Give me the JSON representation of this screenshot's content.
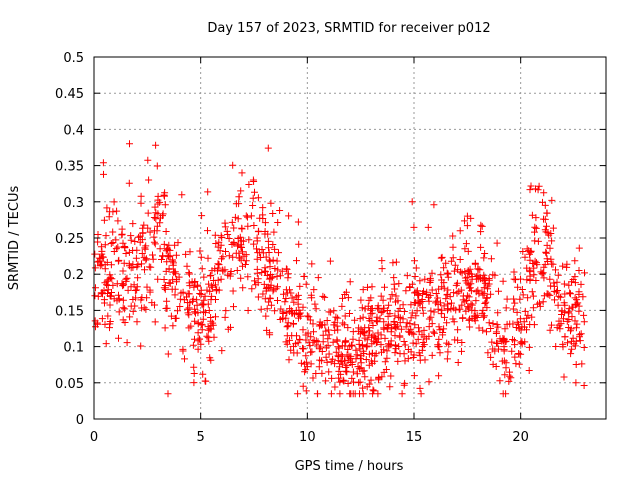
{
  "chart_data": {
    "type": "scatter",
    "title": "Day 157 of 2023, SRMTID for receiver p012",
    "xlabel": "GPS time / hours",
    "ylabel": "SRMTID / TECUs",
    "xlim": [
      0,
      24
    ],
    "ylim": [
      0,
      0.5
    ],
    "xticks": [
      0,
      5,
      10,
      15,
      20
    ],
    "xtick_labels": [
      "0",
      "5",
      "10",
      "15",
      "20"
    ],
    "yticks": [
      0,
      0.05,
      0.1,
      0.15,
      0.2,
      0.25,
      0.3,
      0.35,
      0.4,
      0.45,
      0.5
    ],
    "ytick_labels": [
      "0",
      "0.05",
      "0.1",
      "0.15",
      "0.2",
      "0.25",
      "0.3",
      "0.35",
      "0.4",
      "0.45",
      "0.5"
    ],
    "grid": true,
    "marker": "+",
    "color": "#ff0000",
    "x_data_range": [
      0,
      23
    ],
    "trend": {
      "x": [
        0,
        1,
        2,
        2.5,
        3,
        3.5,
        4,
        5,
        6,
        6.5,
        7,
        7.5,
        8,
        8.5,
        9,
        10,
        11,
        12,
        12.5,
        13,
        14,
        15,
        16,
        17,
        18,
        18.5,
        19,
        20,
        20.5,
        21,
        21.5,
        22,
        23
      ],
      "y": [
        0.2,
        0.2,
        0.2,
        0.22,
        0.27,
        0.2,
        0.16,
        0.14,
        0.2,
        0.26,
        0.24,
        0.24,
        0.22,
        0.2,
        0.15,
        0.11,
        0.11,
        0.09,
        0.08,
        0.1,
        0.13,
        0.13,
        0.15,
        0.16,
        0.2,
        0.15,
        0.1,
        0.13,
        0.2,
        0.24,
        0.2,
        0.15,
        0.15
      ]
    },
    "spread": 0.045,
    "n_points": 1500
  }
}
